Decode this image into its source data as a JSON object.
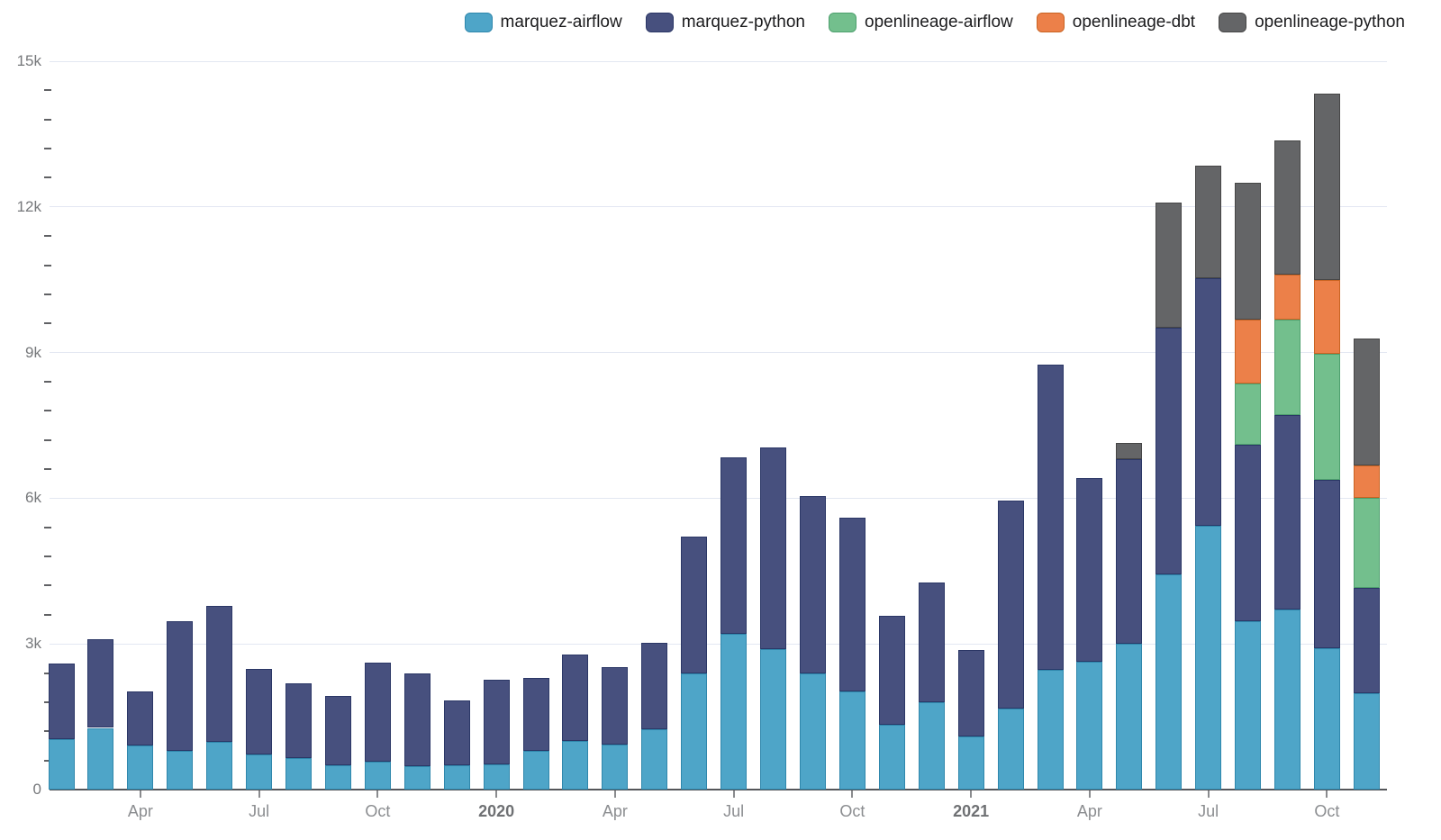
{
  "chart_data": {
    "type": "bar",
    "stacked": true,
    "title": "",
    "xlabel": "",
    "ylabel": "",
    "ylim": [
      0,
      15000
    ],
    "grid": true,
    "legend_position": "top-right",
    "x": [
      "2019-02",
      "2019-03",
      "2019-04",
      "2019-05",
      "2019-06",
      "2019-07",
      "2019-08",
      "2019-09",
      "2019-10",
      "2019-11",
      "2019-12",
      "2020-01",
      "2020-02",
      "2020-03",
      "2020-04",
      "2020-05",
      "2020-06",
      "2020-07",
      "2020-08",
      "2020-09",
      "2020-10",
      "2020-11",
      "2020-12",
      "2021-01",
      "2021-02",
      "2021-03",
      "2021-04",
      "2021-05",
      "2021-06",
      "2021-07",
      "2021-08",
      "2021-09",
      "2021-10",
      "2021-11"
    ],
    "x_tick_labels": [
      {
        "index": 2,
        "label": "Apr",
        "bold": false
      },
      {
        "index": 5,
        "label": "Jul",
        "bold": false
      },
      {
        "index": 8,
        "label": "Oct",
        "bold": false
      },
      {
        "index": 11,
        "label": "2020",
        "bold": true
      },
      {
        "index": 14,
        "label": "Apr",
        "bold": false
      },
      {
        "index": 17,
        "label": "Jul",
        "bold": false
      },
      {
        "index": 20,
        "label": "Oct",
        "bold": false
      },
      {
        "index": 23,
        "label": "2021",
        "bold": true
      },
      {
        "index": 26,
        "label": "Apr",
        "bold": false
      },
      {
        "index": 29,
        "label": "Jul",
        "bold": false
      },
      {
        "index": 32,
        "label": "Oct",
        "bold": false
      }
    ],
    "y_ticks": [
      {
        "value": 0,
        "label": "0"
      },
      {
        "value": 3000,
        "label": "3k"
      },
      {
        "value": 6000,
        "label": "6k"
      },
      {
        "value": 9000,
        "label": "9k"
      },
      {
        "value": 12000,
        "label": "12k"
      },
      {
        "value": 15000,
        "label": "15k"
      }
    ],
    "y_minor_interval": 600,
    "series": [
      {
        "name": "marquez-airflow",
        "color": "#4ea5c8",
        "border_color": "#2f87ac",
        "values": [
          1040,
          1270,
          910,
          800,
          975,
          720,
          640,
          500,
          580,
          480,
          500,
          520,
          800,
          1000,
          920,
          1240,
          2400,
          3200,
          2890,
          2400,
          2015,
          1340,
          1800,
          1100,
          1660,
          2460,
          2630,
          3000,
          4430,
          5430,
          3470,
          3700,
          2920,
          1980
        ]
      },
      {
        "name": "marquez-python",
        "color": "#47507e",
        "border_color": "#2b3766",
        "values": [
          1560,
          1830,
          1110,
          2670,
          2805,
          1770,
          1540,
          1420,
          2030,
          1920,
          1330,
          1750,
          1490,
          1780,
          1610,
          1780,
          2815,
          3650,
          4160,
          3650,
          3585,
          2240,
          2460,
          1770,
          4290,
          6290,
          3790,
          3800,
          5080,
          5100,
          3630,
          4010,
          3450,
          2170
        ]
      },
      {
        "name": "openlineage-airflow",
        "color": "#73bf8d",
        "border_color": "#4ea06e",
        "values": [
          0,
          0,
          0,
          0,
          0,
          0,
          0,
          0,
          0,
          0,
          0,
          0,
          0,
          0,
          0,
          0,
          0,
          0,
          0,
          0,
          0,
          0,
          0,
          0,
          0,
          0,
          0,
          0,
          0,
          0,
          1260,
          1970,
          2610,
          1850
        ]
      },
      {
        "name": "openlineage-dbt",
        "color": "#ec8049",
        "border_color": "#c96322",
        "values": [
          0,
          0,
          0,
          0,
          0,
          0,
          0,
          0,
          0,
          0,
          0,
          0,
          0,
          0,
          0,
          0,
          0,
          0,
          0,
          0,
          0,
          0,
          0,
          0,
          0,
          0,
          0,
          0,
          0,
          0,
          1310,
          930,
          1520,
          680
        ]
      },
      {
        "name": "openlineage-python",
        "color": "#646567",
        "border_color": "#464646",
        "values": [
          0,
          0,
          0,
          0,
          0,
          0,
          0,
          0,
          0,
          0,
          0,
          0,
          0,
          0,
          0,
          0,
          0,
          0,
          0,
          0,
          0,
          0,
          0,
          0,
          0,
          0,
          0,
          330,
          2580,
          2320,
          2820,
          2750,
          3830,
          2610
        ]
      }
    ]
  }
}
